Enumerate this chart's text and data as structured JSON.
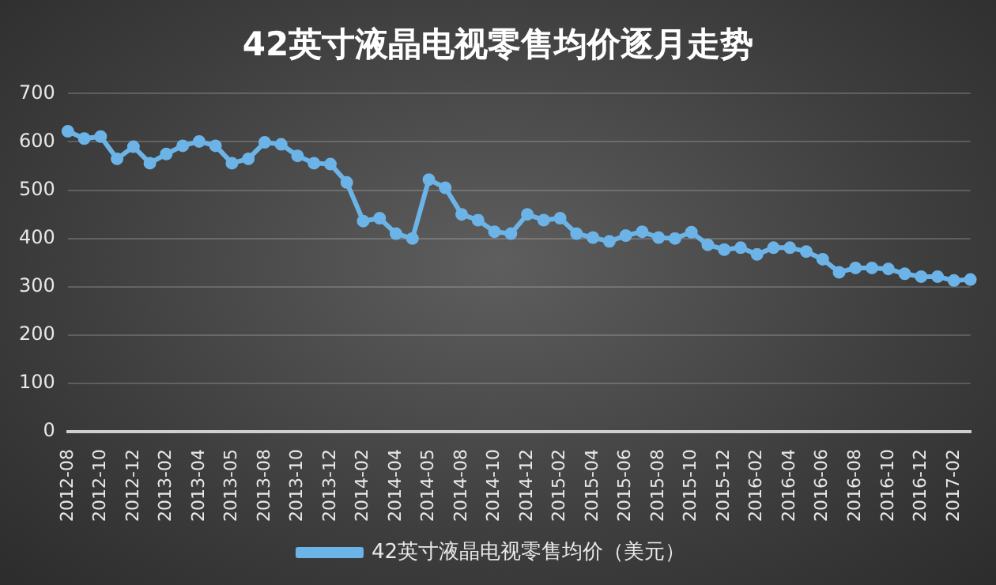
{
  "chart_data": {
    "type": "line",
    "title": "42英寸液晶电视零售均价逐月走势",
    "categories": [
      "2012-08",
      null,
      "2012-10",
      null,
      "2012-12",
      null,
      "2013-02",
      null,
      "2013-04",
      null,
      "2013-05",
      null,
      "2013-08",
      null,
      "2013-10",
      null,
      "2013-12",
      null,
      "2014-02",
      null,
      "2014-04",
      null,
      "2014-05",
      null,
      "2014-08",
      null,
      "2014-10",
      null,
      "2014-12",
      null,
      "2015-02",
      null,
      "2015-04",
      null,
      "2015-06",
      null,
      "2015-08",
      null,
      "2015-10",
      null,
      "2015-12",
      null,
      "2016-02",
      null,
      "2016-04",
      null,
      "2016-06",
      null,
      "2016-08",
      null,
      "2016-10",
      null,
      "2016-12",
      null,
      "2017-02",
      null
    ],
    "series": [
      {
        "name": "42英寸液晶电视零售均价（美元）",
        "color": "#6cb4e8",
        "values": [
          622,
          607,
          611,
          565,
          590,
          556,
          575,
          592,
          601,
          592,
          556,
          565,
          599,
          595,
          571,
          556,
          554,
          516,
          436,
          442,
          410,
          400,
          522,
          505,
          450,
          438,
          414,
          410,
          450,
          438,
          442,
          410,
          402,
          394,
          406,
          414,
          402,
          400,
          413,
          387,
          377,
          381,
          367,
          381,
          381,
          373,
          357,
          330,
          339,
          339,
          337,
          327,
          321,
          321,
          313,
          315
        ]
      }
    ],
    "ylim": [
      0,
      700
    ],
    "yticks": [
      0,
      100,
      200,
      300,
      400,
      500,
      600,
      700
    ],
    "grid": "y",
    "legend": "bottom",
    "marker": "circle",
    "line_style": "solid"
  }
}
